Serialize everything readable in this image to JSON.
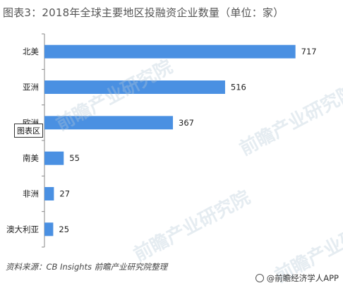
{
  "title": "图表3：2018年全球主要地区投融资企业数量（单位：家）",
  "chart_data": {
    "type": "bar",
    "orientation": "horizontal",
    "categories": [
      "北美",
      "亚洲",
      "欧洲",
      "南美",
      "非洲",
      "澳大利亚"
    ],
    "values": [
      717,
      516,
      367,
      55,
      27,
      25
    ],
    "xlim": [
      0,
      750
    ],
    "bar_color": "#4a90e2",
    "grid": false,
    "legend": "none"
  },
  "tooltip_label": "图表区",
  "source": "资料来源：CB Insights  前瞻产业研究院整理",
  "brand": "@前瞻经济学人APP",
  "watermarks": [
    "前瞻产业研究院",
    "前瞻产业研究院",
    "前瞻产业研究院",
    "前瞻产业研究院"
  ]
}
